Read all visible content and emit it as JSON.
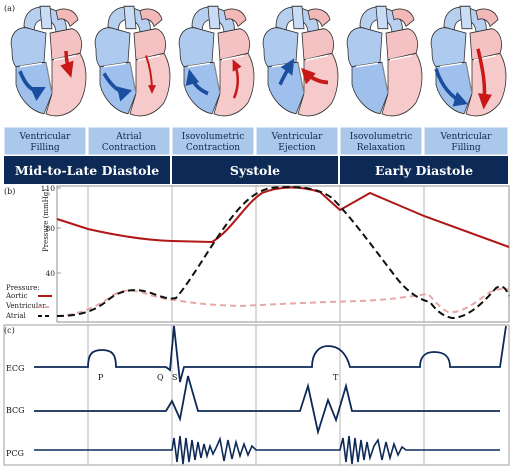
{
  "panel_labels": {
    "a": "(a)",
    "b": "(b)",
    "c": "(c)"
  },
  "phases": [
    {
      "line1": "Ventricular",
      "line2": "Filling"
    },
    {
      "line1": "Atrial",
      "line2": "Contraction"
    },
    {
      "line1": "Isovolumetric",
      "line2": "Contraction"
    },
    {
      "line1": "Ventricular",
      "line2": "Ejection"
    },
    {
      "line1": "Isovolumetric",
      "line2": "Relaxation"
    },
    {
      "line1": "Ventricular",
      "line2": "Filling"
    }
  ],
  "periods": [
    "Mid-to-Late Diastole",
    "Systole",
    "Early Diastole"
  ],
  "pressure_chart": {
    "ylabel": "Pressure (mmHg)",
    "yticks": [
      "110",
      "80",
      "40"
    ],
    "legend_title": "Pressure:",
    "legend": [
      {
        "name": "Aortic",
        "color": "#b01818"
      },
      {
        "name": "Ventricular",
        "color": "#e8a8a8"
      },
      {
        "name": "Atrial",
        "color": "#111111"
      }
    ]
  },
  "waveforms": {
    "labels": [
      "ECG",
      "BCG",
      "PCG"
    ],
    "ecg_points": {
      "p": "P",
      "q": "Q",
      "s": "S",
      "t": "T"
    }
  },
  "colors": {
    "accent_navy": "#0d2a57",
    "phase_box": "#aac8ea",
    "blood_blue": "#1c4ea0",
    "blood_red": "#c81818"
  }
}
